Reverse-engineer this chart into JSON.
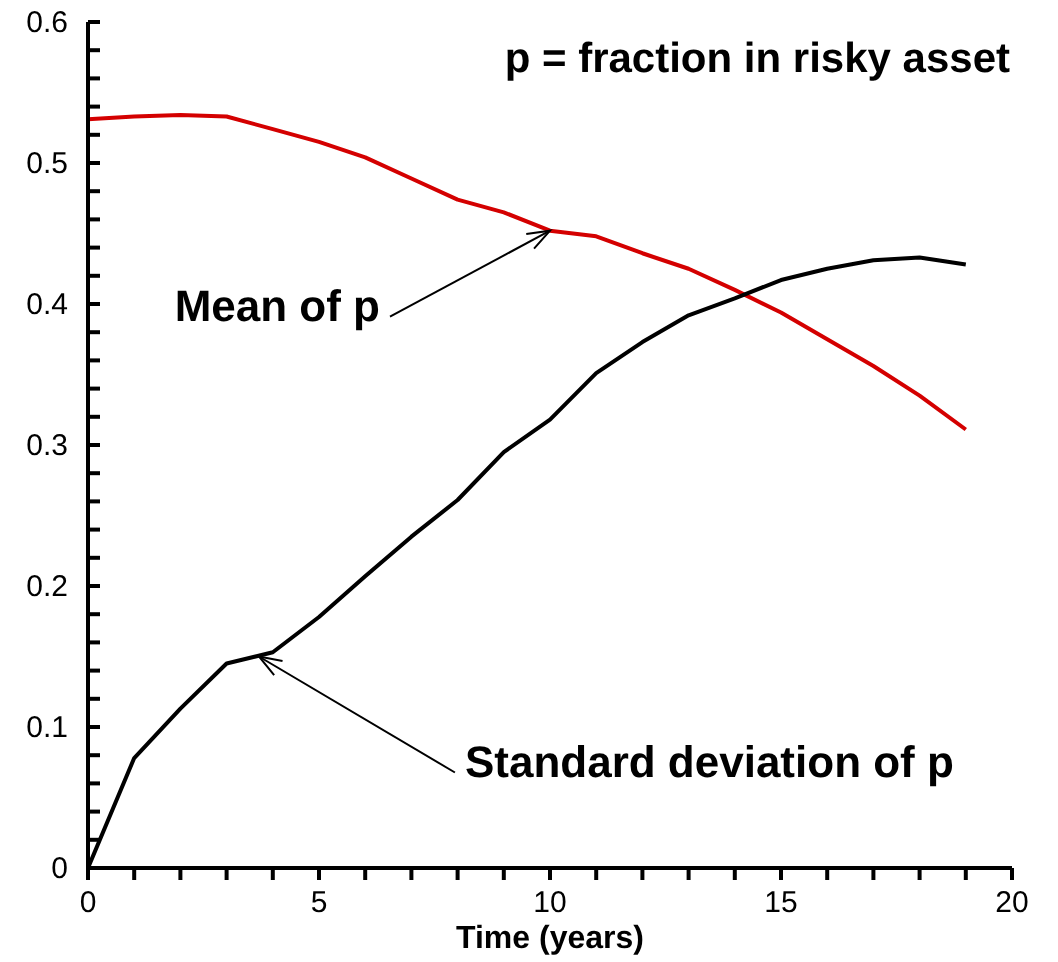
{
  "chart_data": {
    "type": "line",
    "title": "p = fraction in risky asset",
    "xlabel": "Time (years)",
    "x": [
      0,
      1,
      2,
      3,
      4,
      5,
      6,
      7,
      8,
      9,
      10,
      11,
      12,
      13,
      14,
      15,
      16,
      17,
      18,
      19
    ],
    "series": [
      {
        "color": "#d40000",
        "values": [
          0.531,
          0.533,
          0.534,
          0.533,
          0.524,
          0.515,
          0.504,
          0.489,
          0.474,
          0.465,
          0.452,
          0.448,
          0.436,
          0.425,
          0.41,
          0.394,
          0.375,
          0.356,
          0.335,
          0.311
        ]
      },
      {
        "color": "#000000",
        "values": [
          0,
          0.078,
          0.113,
          0.145,
          0.153,
          0.178,
          0.207,
          0.235,
          0.261,
          0.295,
          0.318,
          0.351,
          0.373,
          0.392,
          0.404,
          0.417,
          0.425,
          0.431,
          0.433,
          0.428
        ]
      }
    ],
    "annotations": [
      {
        "text": "Mean of p",
        "x": 10,
        "y": 0.452
      },
      {
        "text": "Standard deviation of p",
        "x": 3.7,
        "y": 0.15
      }
    ],
    "xlim": [
      0,
      20
    ],
    "xticks": [
      0,
      {
        "value": 1,
        "label": null
      },
      {
        "value": 2,
        "label": null
      },
      {
        "value": 3,
        "label": null
      },
      {
        "value": 4,
        "label": null
      },
      5,
      {
        "value": 6,
        "label": null
      },
      {
        "value": 7,
        "label": null
      },
      {
        "value": 8,
        "label": null
      },
      {
        "value": 9,
        "label": null
      },
      10,
      {
        "value": 11,
        "label": null
      },
      {
        "value": 12,
        "label": null
      },
      {
        "value": 13,
        "label": null
      },
      {
        "value": 14,
        "label": null
      },
      15,
      {
        "value": 16,
        "label": null
      },
      {
        "value": 17,
        "label": null
      },
      {
        "value": 18,
        "label": null
      },
      {
        "value": 19,
        "label": null
      },
      20
    ],
    "ylim": [
      0,
      0.6
    ],
    "yticks": [
      0,
      {
        "value": 0.02,
        "label": null
      },
      {
        "value": 0.04,
        "label": null
      },
      {
        "value": 0.06,
        "label": null
      },
      {
        "value": 0.08,
        "label": null
      },
      0.1,
      {
        "value": 0.12,
        "label": null
      },
      {
        "value": 0.14,
        "label": null
      },
      {
        "value": 0.16,
        "label": null
      },
      {
        "value": 0.18,
        "label": null
      },
      0.2,
      {
        "value": 0.22,
        "label": null
      },
      {
        "value": 0.24,
        "label": null
      },
      {
        "value": 0.26,
        "label": null
      },
      {
        "value": 0.28,
        "label": null
      },
      0.3,
      {
        "value": 0.32,
        "label": null
      },
      {
        "value": 0.34,
        "label": null
      },
      {
        "value": 0.36,
        "label": null
      },
      {
        "value": 0.38,
        "label": null
      },
      0.4,
      {
        "value": 0.42,
        "label": null
      },
      {
        "value": 0.44,
        "label": null
      },
      {
        "value": 0.46,
        "label": null
      },
      {
        "value": 0.48,
        "label": null
      },
      0.5,
      {
        "value": 0.52,
        "label": null
      },
      {
        "value": 0.54,
        "label": null
      },
      {
        "value": 0.56,
        "label": null
      },
      {
        "value": 0.58,
        "label": null
      },
      0.6
    ],
    "grid": false,
    "legend": false,
    "marker": "none",
    "line_style": "solid"
  }
}
